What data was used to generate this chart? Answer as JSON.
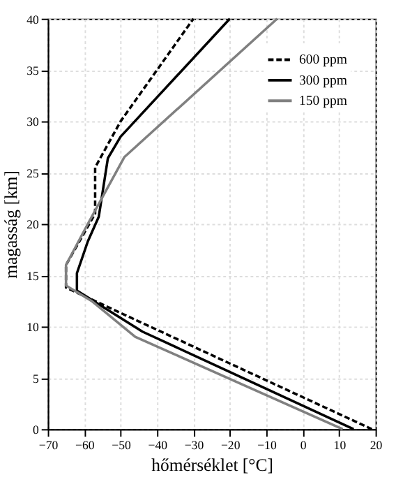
{
  "chart_data": {
    "type": "line",
    "xlabel": "hőmérséklet [°C]",
    "ylabel": "magasság [km]",
    "xlim": [
      -70,
      20
    ],
    "ylim": [
      0,
      40
    ],
    "xticks": [
      -70,
      -60,
      -50,
      -40,
      -30,
      -20,
      -10,
      0,
      10,
      20
    ],
    "yticks": [
      0,
      5,
      10,
      15,
      20,
      25,
      30,
      35,
      40
    ],
    "grid": true,
    "legend": "top right",
    "marker": "none",
    "series": [
      {
        "name": "600 ppm",
        "color": "#000000",
        "line_style": "dashed",
        "x": [
          19,
          -45,
          -65,
          -65,
          -57,
          -57,
          -50,
          -30
        ],
        "values": [
          0,
          10.5,
          13.8,
          16,
          21,
          25.5,
          30,
          40
        ]
      },
      {
        "name": "300 ppm",
        "color": "#000000",
        "line_style": "solid",
        "x": [
          14,
          -44,
          -62,
          -62,
          -59,
          -56,
          -53.5,
          -50,
          -20
        ],
        "values": [
          0,
          9.5,
          13.5,
          15.2,
          18.3,
          20.7,
          26.4,
          28.5,
          40
        ]
      },
      {
        "name": "150 ppm",
        "color": "#808080",
        "line_style": "solid",
        "x": [
          11,
          -46,
          -58,
          -65,
          -65,
          -59,
          -49,
          -7
        ],
        "values": [
          0,
          9,
          12.5,
          14,
          16,
          20,
          26.5,
          40
        ]
      }
    ]
  }
}
